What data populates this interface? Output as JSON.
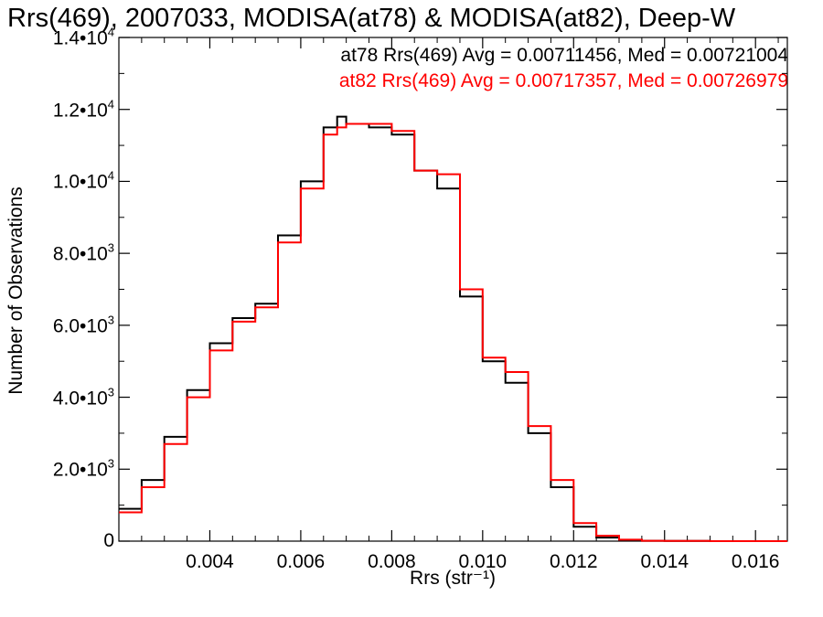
{
  "chart_data": {
    "type": "line",
    "title": "Rrs(469), 2007033, MODISA(at78) & MODISA(at82), Deep-W",
    "xlabel": "Rrs (str⁻¹)",
    "ylabel": "Number of Observations",
    "xlim": [
      0.002,
      0.0167
    ],
    "ylim": [
      0,
      14000
    ],
    "xticks": [
      {
        "value": 0.004,
        "label": "0.004"
      },
      {
        "value": 0.006,
        "label": "0.006"
      },
      {
        "value": 0.008,
        "label": "0.008"
      },
      {
        "value": 0.01,
        "label": "0.010"
      },
      {
        "value": 0.012,
        "label": "0.012"
      },
      {
        "value": 0.014,
        "label": "0.014"
      },
      {
        "value": 0.016,
        "label": "0.016"
      }
    ],
    "yticks": [
      {
        "value": 0,
        "mant": "0",
        "exp": ""
      },
      {
        "value": 2000,
        "mant": "2.0•10",
        "exp": "3"
      },
      {
        "value": 4000,
        "mant": "4.0•10",
        "exp": "3"
      },
      {
        "value": 6000,
        "mant": "6.0•10",
        "exp": "3"
      },
      {
        "value": 8000,
        "mant": "8.0•10",
        "exp": "3"
      },
      {
        "value": 10000,
        "mant": "1.0•10",
        "exp": "4"
      },
      {
        "value": 12000,
        "mant": "1.2•10",
        "exp": "4"
      },
      {
        "value": 14000,
        "mant": "1.4•10",
        "exp": "4"
      }
    ],
    "legend": [
      {
        "text": "at78 Rrs(469) Avg = 0.00711456, Med = 0.00721004",
        "color": "#000000"
      },
      {
        "text": "at82 Rrs(469) Avg = 0.00717357, Med = 0.00726979",
        "color": "#ff0000"
      }
    ],
    "legend_position": "top-right",
    "grid": false,
    "series": [
      {
        "color": "#000000",
        "step": true,
        "x": [
          0.002,
          0.0025,
          0.003,
          0.0035,
          0.004,
          0.0045,
          0.005,
          0.0055,
          0.006,
          0.0065,
          0.0068,
          0.007,
          0.0075,
          0.008,
          0.0085,
          0.009,
          0.0095,
          0.01,
          0.0105,
          0.011,
          0.0115,
          0.012,
          0.0125,
          0.013,
          0.0135,
          0.014,
          0.015,
          0.0167
        ],
        "y": [
          900,
          1700,
          2900,
          4200,
          5500,
          6200,
          6600,
          8500,
          10000,
          11500,
          11800,
          11600,
          11500,
          11300,
          10300,
          9800,
          6800,
          5000,
          4400,
          3000,
          1500,
          400,
          100,
          30,
          10,
          5,
          0,
          0
        ]
      },
      {
        "color": "#ff0000",
        "step": true,
        "x": [
          0.002,
          0.0025,
          0.003,
          0.0035,
          0.004,
          0.0045,
          0.005,
          0.0055,
          0.006,
          0.0065,
          0.0068,
          0.007,
          0.0075,
          0.008,
          0.0085,
          0.009,
          0.0095,
          0.01,
          0.0105,
          0.011,
          0.0115,
          0.012,
          0.0125,
          0.013,
          0.0135,
          0.014,
          0.015,
          0.0167
        ],
        "y": [
          800,
          1500,
          2700,
          4000,
          5300,
          6100,
          6500,
          8300,
          9800,
          11300,
          11500,
          11600,
          11600,
          11400,
          10300,
          10200,
          7000,
          5100,
          4700,
          3200,
          1700,
          500,
          150,
          40,
          10,
          5,
          0,
          0
        ]
      }
    ]
  }
}
